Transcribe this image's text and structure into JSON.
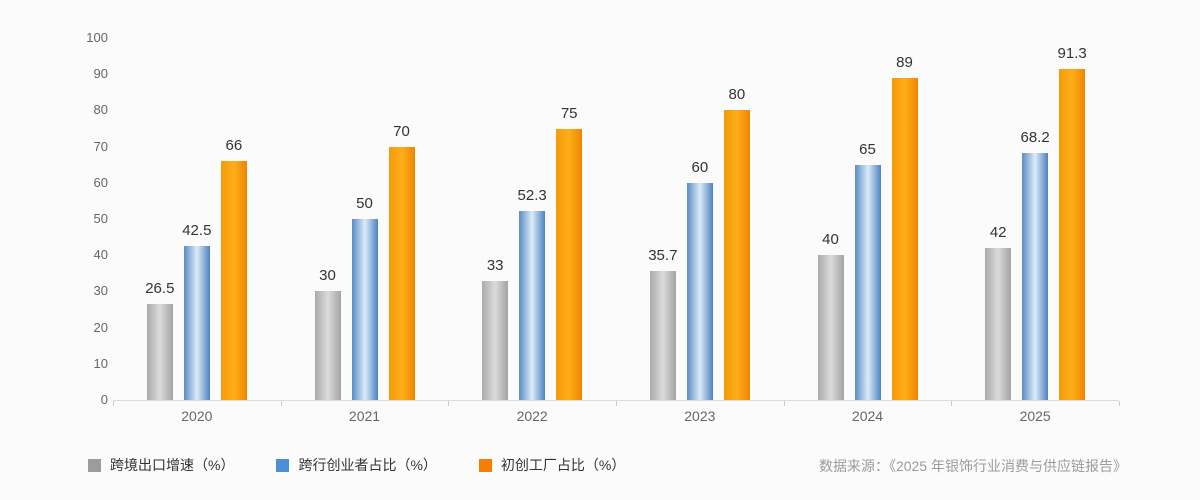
{
  "background": "#fbfbfb",
  "chart_data": {
    "type": "bar",
    "title": "",
    "xlabel": "",
    "ylabel": "",
    "categories": [
      "2020",
      "2021",
      "2022",
      "2023",
      "2024",
      "2025"
    ],
    "series": [
      {
        "name": "跨境出口增速（%）",
        "values": [
          26.5,
          30,
          33,
          35.7,
          40,
          42
        ],
        "color": "#9c9c9c",
        "gradient": [
          "#aaaaaa",
          "#dbdbdb",
          "#a3a3a3"
        ]
      },
      {
        "name": "跨行创业者占比（%）",
        "values": [
          42.5,
          50,
          52.3,
          60,
          65,
          68.2
        ],
        "color": "#4d8fd4",
        "gradient": [
          "#5a8cc6",
          "#dcebf8",
          "#4d82bf"
        ]
      },
      {
        "name": "初创工厂占比（%）",
        "values": [
          66,
          70,
          75,
          80,
          89,
          91.3
        ],
        "color": "#f87e00",
        "gradient": [
          "#f49b09",
          "#ffae1a",
          "#ee8500"
        ]
      }
    ],
    "ylim": [
      0,
      100
    ],
    "yticks": [
      0,
      10,
      20,
      30,
      40,
      50,
      60,
      70,
      80,
      90,
      100
    ],
    "grid": false,
    "legend_position": "bottom-left",
    "value_labels": true
  },
  "source": {
    "label": "数据来源：《2025 年银饰行业消费与供应链报告》"
  }
}
